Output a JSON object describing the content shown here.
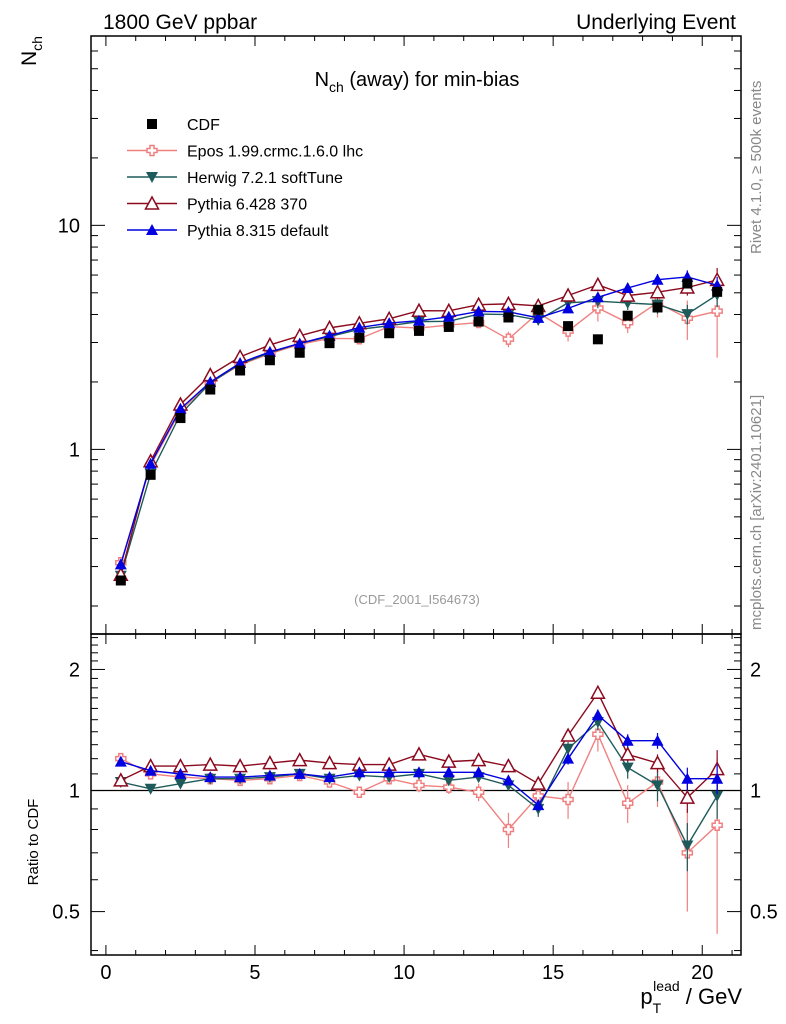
{
  "header": {
    "left": "1800 GeV ppbar",
    "right": "Underlying Event"
  },
  "side_texts": {
    "rivet": "Rivet 4.1.0, ≥ 500k events",
    "mcplots": "mcplots.cern.ch [arXiv:2401.10621]"
  },
  "reference_tag": "(CDF_2001_I564673)",
  "chart_data": {
    "type": "scatter",
    "title_main": "N",
    "title_sub": "ch",
    "title_rest": " (away) for min-bias",
    "ylabel_main": "N",
    "ylabel_sub": "ch",
    "ratio_ylabel": "Ratio to CDF",
    "xlabel_p": "p",
    "xlabel_sub": "T",
    "xlabel_sup": "lead",
    "xlabel_rest": " / GeV",
    "xlim": [
      -0.5,
      21.3
    ],
    "ylim": [
      0.15,
      70
    ],
    "yscale": "log",
    "ratio_ylim": [
      0.39,
      2.45
    ],
    "ratio_yscale": "log",
    "x_ticks": [
      "0",
      "5",
      "10",
      "15",
      "20"
    ],
    "y_ticks": [
      "1",
      "10"
    ],
    "ratio_ticks": [
      "0.5",
      "1",
      "2"
    ],
    "x": [
      0.5,
      1.5,
      2.5,
      3.5,
      4.5,
      5.5,
      6.5,
      7.5,
      8.5,
      9.5,
      10.5,
      11.5,
      12.5,
      13.5,
      14.5,
      15.5,
      16.5,
      17.5,
      18.5,
      19.5,
      20.5
    ],
    "reference": {
      "name": "CDF",
      "color": "#000000",
      "values": [
        0.26,
        0.77,
        1.38,
        1.85,
        2.25,
        2.5,
        2.7,
        2.98,
        3.15,
        3.3,
        3.38,
        3.52,
        3.72,
        3.88,
        4.2,
        3.55,
        3.1,
        3.95,
        4.3,
        5.5,
        5.05
      ]
    },
    "series": [
      {
        "name": "Epos 1.99.crmc.1.6.0 lhc",
        "color": "#f08080",
        "marker": "cross",
        "ratio": [
          1.2,
          1.1,
          1.08,
          1.07,
          1.06,
          1.07,
          1.09,
          1.05,
          0.99,
          1.07,
          1.03,
          1.02,
          0.99,
          0.8,
          0.97,
          0.95,
          1.38,
          0.93,
          1.05,
          0.7,
          0.82
        ],
        "ratio_err": [
          0.02,
          0.02,
          0.02,
          0.02,
          0.02,
          0.02,
          0.02,
          0.03,
          0.03,
          0.03,
          0.04,
          0.04,
          0.05,
          0.08,
          0.06,
          0.1,
          0.13,
          0.1,
          0.14,
          0.2,
          0.38
        ]
      },
      {
        "name": "Herwig 7.2.1 softTune",
        "color": "#1e5a5a",
        "marker": "triangle-down",
        "ratio": [
          1.05,
          1.01,
          1.04,
          1.07,
          1.07,
          1.08,
          1.1,
          1.07,
          1.09,
          1.08,
          1.1,
          1.06,
          1.08,
          1.03,
          0.9,
          1.27,
          1.48,
          1.14,
          1.03,
          0.73,
          0.97
        ],
        "ratio_err": [
          0.01,
          0.01,
          0.01,
          0.01,
          0.01,
          0.01,
          0.02,
          0.02,
          0.02,
          0.02,
          0.02,
          0.03,
          0.03,
          0.03,
          0.04,
          0.05,
          0.07,
          0.07,
          0.09,
          0.1,
          0.12
        ]
      },
      {
        "name": "Pythia 6.428 370",
        "color": "#8b0a1e",
        "marker": "triangle-open",
        "ratio": [
          1.06,
          1.15,
          1.15,
          1.16,
          1.15,
          1.17,
          1.19,
          1.17,
          1.16,
          1.16,
          1.23,
          1.18,
          1.19,
          1.15,
          1.04,
          1.37,
          1.75,
          1.23,
          1.17,
          0.96,
          1.13
        ],
        "ratio_err": [
          0.01,
          0.01,
          0.01,
          0.01,
          0.01,
          0.01,
          0.01,
          0.01,
          0.02,
          0.02,
          0.02,
          0.02,
          0.02,
          0.03,
          0.03,
          0.04,
          0.06,
          0.05,
          0.06,
          0.08,
          0.13
        ]
      },
      {
        "name": "Pythia 8.315 default",
        "color": "#0000e0",
        "marker": "triangle-up",
        "ratio": [
          1.18,
          1.12,
          1.1,
          1.08,
          1.08,
          1.09,
          1.1,
          1.08,
          1.11,
          1.11,
          1.11,
          1.11,
          1.11,
          1.06,
          0.92,
          1.2,
          1.54,
          1.33,
          1.33,
          1.07,
          1.07
        ],
        "ratio_err": [
          0.01,
          0.01,
          0.01,
          0.01,
          0.01,
          0.01,
          0.01,
          0.01,
          0.01,
          0.02,
          0.02,
          0.02,
          0.02,
          0.02,
          0.03,
          0.04,
          0.05,
          0.05,
          0.06,
          0.07,
          0.09
        ]
      }
    ]
  }
}
